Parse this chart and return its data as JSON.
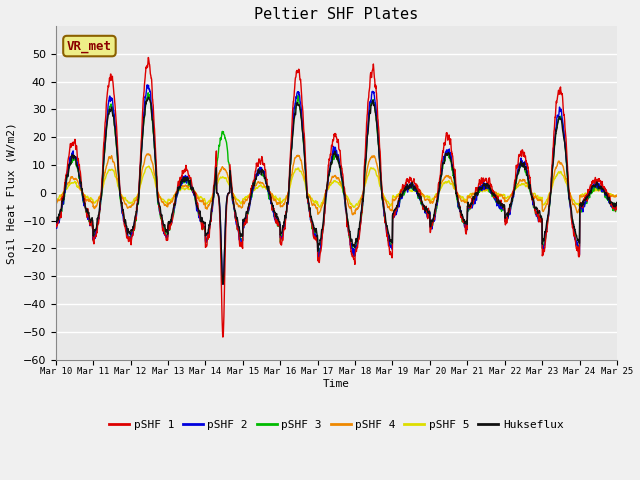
{
  "title": "Peltier SHF Plates",
  "ylabel": "Soil Heat Flux (W/m2)",
  "xlabel": "Time",
  "ylim": [
    -60,
    60
  ],
  "yticks": [
    -60,
    -50,
    -40,
    -30,
    -20,
    -10,
    0,
    10,
    20,
    30,
    40,
    50
  ],
  "series_colors": {
    "pSHF 1": "#dd0000",
    "pSHF 2": "#0000dd",
    "pSHF 3": "#00bb00",
    "pSHF 4": "#ee8800",
    "pSHF 5": "#dddd00",
    "Hukseflux": "#111111"
  },
  "annotation_text": "VR_met",
  "annotation_color": "#8B0000",
  "annotation_bg": "#eeee88",
  "annotation_edge": "#8B6000",
  "n_days": 15,
  "start_day": 10,
  "bg_color": "#e8e8e8",
  "fig_bg": "#f0f0f0"
}
